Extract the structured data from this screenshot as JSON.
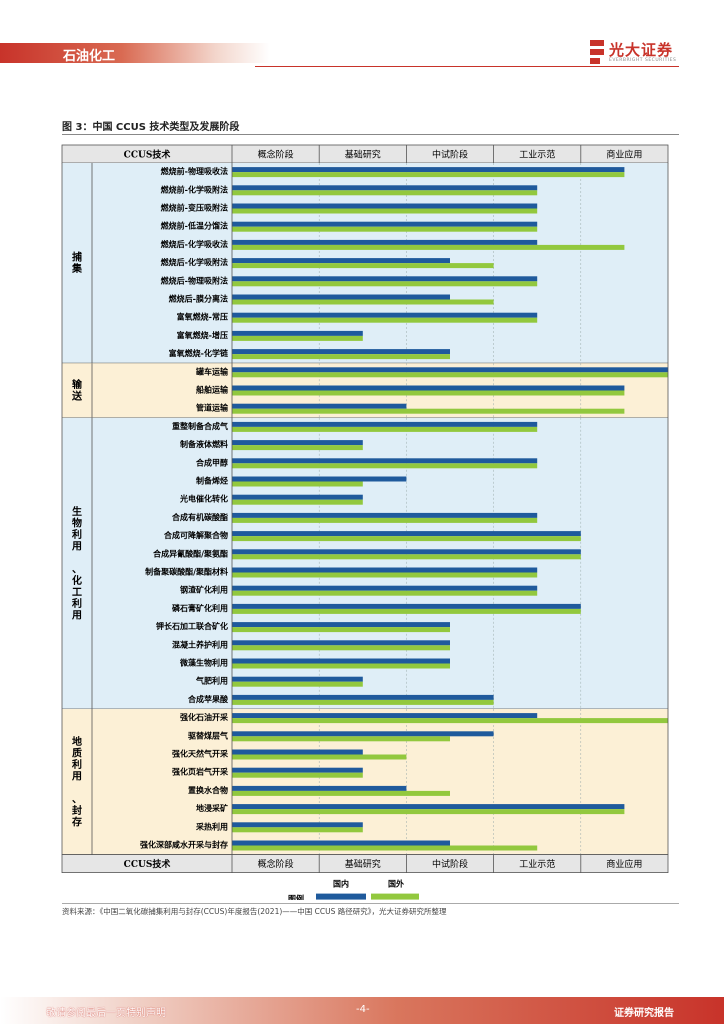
{
  "header": {
    "section": "石油化工",
    "logo_name": "光大证券",
    "logo_sub": "EVERBRIGHT SECURITIES"
  },
  "figure": {
    "title": "图 3：中国 CCUS 技术类型及发展阶段"
  },
  "chart_data": {
    "type": "bar",
    "orientation": "horizontal",
    "title": "中国 CCUS 技术类型及发展阶段",
    "category_header": "CCUS技术",
    "stages": [
      "概念阶段",
      "基础研究",
      "中试阶段",
      "工业示范",
      "商业应用"
    ],
    "value_unit": "stage index (0 = start of 概念阶段, 5 = end of 商业应用)",
    "xlim": [
      0,
      5
    ],
    "series": [
      {
        "name": "国内",
        "color": "#1f5a9c"
      },
      {
        "name": "国外",
        "color": "#92c83e"
      }
    ],
    "legend_label": "图例",
    "groups": [
      {
        "name": "捕集",
        "bg": "#dfeef7",
        "items": [
          {
            "label": "燃烧前-物理吸收法",
            "domestic": 4.5,
            "foreign": 4.5
          },
          {
            "label": "燃烧前-化学吸附法",
            "domestic": 3.5,
            "foreign": 3.5
          },
          {
            "label": "燃烧前-变压吸附法",
            "domestic": 3.5,
            "foreign": 3.5
          },
          {
            "label": "燃烧前-低温分馏法",
            "domestic": 3.5,
            "foreign": 3.5
          },
          {
            "label": "燃烧后-化学吸收法",
            "domestic": 3.5,
            "foreign": 4.5
          },
          {
            "label": "燃烧后-化学吸附法",
            "domestic": 2.5,
            "foreign": 3.0
          },
          {
            "label": "燃烧后-物理吸附法",
            "domestic": 3.5,
            "foreign": 3.5
          },
          {
            "label": "燃烧后-膜分离法",
            "domestic": 2.5,
            "foreign": 3.0
          },
          {
            "label": "富氧燃烧-常压",
            "domestic": 3.5,
            "foreign": 3.5
          },
          {
            "label": "富氧燃烧-增压",
            "domestic": 1.5,
            "foreign": 1.5
          },
          {
            "label": "富氧燃烧-化学链",
            "domestic": 2.5,
            "foreign": 2.5
          }
        ]
      },
      {
        "name": "输送",
        "bg": "#fcf0d6",
        "items": [
          {
            "label": "罐车运输",
            "domestic": 5.0,
            "foreign": 5.0
          },
          {
            "label": "船舶运输",
            "domestic": 4.5,
            "foreign": 4.5
          },
          {
            "label": "管道运输",
            "domestic": 2.0,
            "foreign": 4.5
          }
        ]
      },
      {
        "name": "生物利用 、化工利用",
        "bg": "#dfeef7",
        "items": [
          {
            "label": "重整制备合成气",
            "domestic": 3.5,
            "foreign": 3.5
          },
          {
            "label": "制备液体燃料",
            "domestic": 1.5,
            "foreign": 1.5
          },
          {
            "label": "合成甲醇",
            "domestic": 3.5,
            "foreign": 3.5
          },
          {
            "label": "制备烯烃",
            "domestic": 2.0,
            "foreign": 1.5
          },
          {
            "label": "光电催化转化",
            "domestic": 1.5,
            "foreign": 1.5
          },
          {
            "label": "合成有机碳酸酯",
            "domestic": 3.5,
            "foreign": 3.5
          },
          {
            "label": "合成可降解聚合物",
            "domestic": 4.0,
            "foreign": 4.0
          },
          {
            "label": "合成异氰酸酯/聚氨酯",
            "domestic": 4.0,
            "foreign": 4.0
          },
          {
            "label": "制备聚碳酸酯/聚酯材料",
            "domestic": 3.5,
            "foreign": 3.5
          },
          {
            "label": "钢渣矿化利用",
            "domestic": 3.5,
            "foreign": 3.5
          },
          {
            "label": "磷石膏矿化利用",
            "domestic": 4.0,
            "foreign": 4.0
          },
          {
            "label": "钾长石加工联合矿化",
            "domestic": 2.5,
            "foreign": 2.5
          },
          {
            "label": "混凝土养护利用",
            "domestic": 2.5,
            "foreign": 2.5
          },
          {
            "label": "微藻生物利用",
            "domestic": 2.5,
            "foreign": 2.5
          },
          {
            "label": "气肥利用",
            "domestic": 1.5,
            "foreign": 1.5
          },
          {
            "label": "合成苹果酸",
            "domestic": 3.0,
            "foreign": 3.0
          }
        ]
      },
      {
        "name": "地质利用 、封存",
        "bg": "#fcf0d6",
        "items": [
          {
            "label": "强化石油开采",
            "domestic": 3.5,
            "foreign": 5.0
          },
          {
            "label": "驱替煤层气",
            "domestic": 3.0,
            "foreign": 2.5
          },
          {
            "label": "强化天然气开采",
            "domestic": 1.5,
            "foreign": 2.0
          },
          {
            "label": "强化页岩气开采",
            "domestic": 1.5,
            "foreign": 1.5
          },
          {
            "label": "置换水合物",
            "domestic": 2.0,
            "foreign": 2.5
          },
          {
            "label": "地浸采矿",
            "domestic": 4.5,
            "foreign": 4.5
          },
          {
            "label": "采热利用",
            "domestic": 1.5,
            "foreign": 1.5
          },
          {
            "label": "强化深部咸水开采与封存",
            "domestic": 2.5,
            "foreign": 3.5
          }
        ]
      }
    ]
  },
  "source": "资料来源：《中国二氧化碳捕集利用与封存(CCUS)年度报告(2021)——中国 CCUS 路径研究》，光大证券研究所整理",
  "footer": {
    "left": "敬请参阅最后一页特别声明",
    "page": "-4-",
    "right": "证券研究报告"
  }
}
